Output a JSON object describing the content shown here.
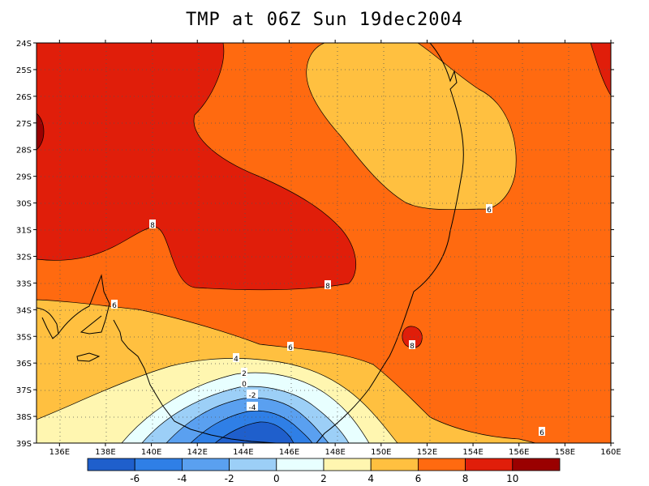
{
  "title": "TMP at 06Z Sun 19dec2004",
  "map": {
    "lat_labels": [
      "24S",
      "25S",
      "26S",
      "27S",
      "28S",
      "29S",
      "30S",
      "31S",
      "32S",
      "33S",
      "34S",
      "35S",
      "36S",
      "37S",
      "38S",
      "39S"
    ],
    "lon_labels": [
      "136E",
      "138E",
      "140E",
      "142E",
      "144E",
      "146E",
      "148E",
      "150E",
      "152E",
      "154E",
      "156E",
      "158E",
      "160E"
    ],
    "grid": true,
    "contour_labels": [
      "8",
      "8",
      "6",
      "6",
      "6",
      "4",
      "2",
      "0",
      "-2",
      "-4",
      "8",
      "6"
    ]
  },
  "colorbar": {
    "ticks": [
      "-6",
      "-4",
      "-2",
      "0",
      "2",
      "4",
      "6",
      "8",
      "10"
    ],
    "colors": [
      "#1f5fcc",
      "#2f7fe6",
      "#5aa0f0",
      "#9ccff7",
      "#e8ffff",
      "#fff6b0",
      "#ffc040",
      "#ff6a10",
      "#e01e0a",
      "#9a0000"
    ]
  },
  "palette": {
    "t10": "#e01e0a",
    "t8": "#ff6a10",
    "t6": "#ffc040",
    "t4": "#fff6b0",
    "t2": "#e8ffff",
    "t0": "#9ccff7",
    "tm2": "#5aa0f0",
    "tm4": "#2f7fe6",
    "tm6": "#1f5fcc"
  }
}
